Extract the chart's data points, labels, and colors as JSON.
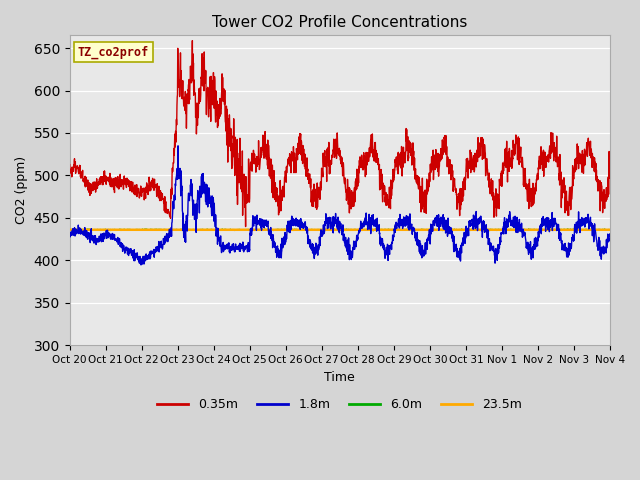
{
  "title": "Tower CO2 Profile Concentrations",
  "xlabel": "Time",
  "ylabel": "CO2 (ppm)",
  "ylim": [
    300,
    665
  ],
  "yticks": [
    300,
    350,
    400,
    450,
    500,
    550,
    600,
    650
  ],
  "fig_bg_color": "#d5d5d5",
  "plot_bg_color": "#e8e8e8",
  "legend_label": "TZ_co2prof",
  "legend_box_color": "#ffffcc",
  "legend_box_edge": "#aaaa00",
  "series_labels": [
    "0.35m",
    "1.8m",
    "6.0m",
    "23.5m"
  ],
  "series_colors": [
    "#cc0000",
    "#0000cc",
    "#00aa00",
    "#ffaa00"
  ],
  "n_points": 2000,
  "x_tick_labels": [
    "Oct 20",
    "Oct 21",
    "Oct 22",
    "Oct 23",
    "Oct 24",
    "Oct 25",
    "Oct 26",
    "Oct 27",
    "Oct 28",
    "Oct 29",
    "Oct 30",
    "Oct 31",
    "Nov 1",
    "Nov 2",
    "Nov 3",
    "Nov 4"
  ],
  "orange_line_value": 436,
  "line_width": 1.0,
  "figsize": [
    6.4,
    4.8
  ],
  "dpi": 100
}
